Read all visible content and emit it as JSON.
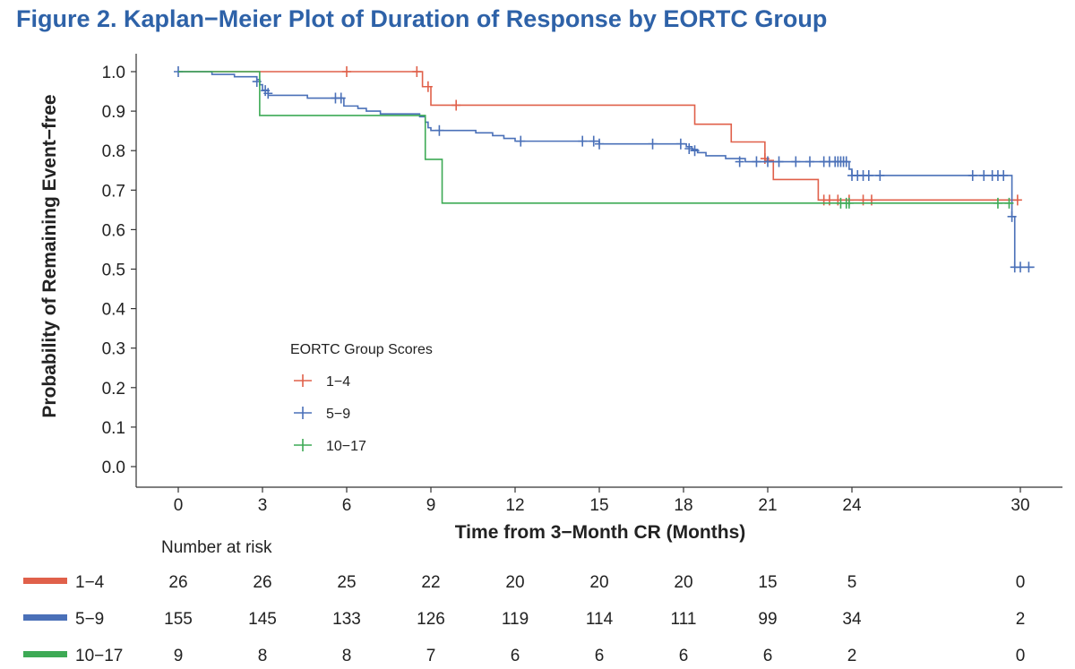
{
  "figure_title": "Figure 2. Kaplan−Meier Plot of Duration of Response by EORTC Group",
  "colors": {
    "title": "#2e62a8",
    "series_1_4": "#e0604a",
    "series_5_9": "#4a70b8",
    "series_10_17": "#3daa55",
    "axis": "#333333"
  },
  "chart_data": {
    "type": "line",
    "subtype": "kaplan-meier step",
    "ylabel": "Probability of Remaining Event−free",
    "xlabel": "Time from 3−Month CR (Months)",
    "xlim": [
      0,
      31
    ],
    "ylim": [
      0,
      1
    ],
    "x_ticks": [
      0,
      3,
      6,
      9,
      12,
      15,
      18,
      21,
      24,
      30
    ],
    "y_ticks": [
      "0.0",
      "0.1",
      "0.2",
      "0.3",
      "0.4",
      "0.5",
      "0.6",
      "0.7",
      "0.8",
      "0.9",
      "1.0"
    ],
    "legend": {
      "title": "EORTC Group Scores",
      "position": "lower-left inside plot"
    },
    "series": [
      {
        "name": "1−4",
        "color": "#e0604a",
        "steps": [
          [
            0,
            1.0
          ],
          [
            8.7,
            0.962
          ],
          [
            9.0,
            0.915
          ],
          [
            18.4,
            0.867
          ],
          [
            19.7,
            0.822
          ],
          [
            20.9,
            0.775
          ],
          [
            21.2,
            0.727
          ],
          [
            22.8,
            0.675
          ],
          [
            29.9,
            0.675
          ]
        ],
        "censored": [
          [
            6.0,
            1.0
          ],
          [
            8.5,
            1.0
          ],
          [
            8.9,
            0.962
          ],
          [
            9.9,
            0.915
          ],
          [
            20.9,
            0.78
          ],
          [
            23.0,
            0.675
          ],
          [
            23.2,
            0.675
          ],
          [
            23.5,
            0.675
          ],
          [
            23.9,
            0.675
          ],
          [
            24.4,
            0.675
          ],
          [
            24.7,
            0.675
          ],
          [
            29.9,
            0.675
          ]
        ]
      },
      {
        "name": "5−9",
        "color": "#4a70b8",
        "steps": [
          [
            0,
            1.0
          ],
          [
            1.2,
            0.993
          ],
          [
            2.0,
            0.987
          ],
          [
            2.8,
            0.98
          ],
          [
            2.9,
            0.967
          ],
          [
            3.0,
            0.953
          ],
          [
            3.2,
            0.94
          ],
          [
            4.6,
            0.933
          ],
          [
            5.9,
            0.913
          ],
          [
            6.4,
            0.907
          ],
          [
            6.7,
            0.9
          ],
          [
            7.2,
            0.893
          ],
          [
            8.6,
            0.886
          ],
          [
            8.8,
            0.872
          ],
          [
            8.9,
            0.858
          ],
          [
            9.0,
            0.851
          ],
          [
            10.6,
            0.845
          ],
          [
            11.2,
            0.838
          ],
          [
            11.6,
            0.831
          ],
          [
            12.0,
            0.824
          ],
          [
            12.2,
            0.824
          ],
          [
            15.0,
            0.817
          ],
          [
            18.1,
            0.81
          ],
          [
            18.3,
            0.803
          ],
          [
            18.5,
            0.795
          ],
          [
            18.8,
            0.787
          ],
          [
            19.5,
            0.78
          ],
          [
            20.2,
            0.772
          ],
          [
            23.9,
            0.753
          ],
          [
            24.0,
            0.737
          ],
          [
            29.6,
            0.737
          ],
          [
            29.7,
            0.633
          ],
          [
            29.8,
            0.505
          ],
          [
            30.5,
            0.505
          ]
        ],
        "censored": [
          [
            0.0,
            1.0
          ],
          [
            2.8,
            0.975
          ],
          [
            3.1,
            0.952
          ],
          [
            3.2,
            0.945
          ],
          [
            5.6,
            0.933
          ],
          [
            5.8,
            0.933
          ],
          [
            9.3,
            0.851
          ],
          [
            12.2,
            0.824
          ],
          [
            14.4,
            0.824
          ],
          [
            14.8,
            0.824
          ],
          [
            15.0,
            0.817
          ],
          [
            16.9,
            0.817
          ],
          [
            17.9,
            0.817
          ],
          [
            18.2,
            0.805
          ],
          [
            18.4,
            0.8
          ],
          [
            20.0,
            0.772
          ],
          [
            20.6,
            0.772
          ],
          [
            21.0,
            0.772
          ],
          [
            21.4,
            0.772
          ],
          [
            22.0,
            0.772
          ],
          [
            22.5,
            0.772
          ],
          [
            23.0,
            0.772
          ],
          [
            23.2,
            0.772
          ],
          [
            23.4,
            0.772
          ],
          [
            23.5,
            0.772
          ],
          [
            23.6,
            0.772
          ],
          [
            23.7,
            0.772
          ],
          [
            23.8,
            0.772
          ],
          [
            24.0,
            0.737
          ],
          [
            24.2,
            0.737
          ],
          [
            24.4,
            0.737
          ],
          [
            24.6,
            0.737
          ],
          [
            25.0,
            0.737
          ],
          [
            28.3,
            0.737
          ],
          [
            28.7,
            0.737
          ],
          [
            29.0,
            0.737
          ],
          [
            29.2,
            0.737
          ],
          [
            29.4,
            0.737
          ],
          [
            29.7,
            0.633
          ],
          [
            29.8,
            0.505
          ],
          [
            30.0,
            0.505
          ],
          [
            30.3,
            0.505
          ]
        ]
      },
      {
        "name": "10−17",
        "color": "#3daa55",
        "steps": [
          [
            0,
            1.0
          ],
          [
            2.9,
            0.889
          ],
          [
            8.8,
            0.778
          ],
          [
            9.4,
            0.667
          ],
          [
            29.7,
            0.667
          ]
        ],
        "censored": [
          [
            23.6,
            0.667
          ],
          [
            23.8,
            0.667
          ],
          [
            23.9,
            0.667
          ],
          [
            29.2,
            0.667
          ],
          [
            29.6,
            0.667
          ]
        ]
      }
    ],
    "risk_table": {
      "title": "Number at risk",
      "times": [
        0,
        3,
        6,
        9,
        12,
        15,
        18,
        21,
        24,
        30
      ],
      "rows": [
        {
          "label": "1−4",
          "color": "#e0604a",
          "counts": [
            "26",
            "26",
            "25",
            "22",
            "20",
            "20",
            "20",
            "15",
            "5",
            "0"
          ]
        },
        {
          "label": "5−9",
          "color": "#4a70b8",
          "counts": [
            "155",
            "145",
            "133",
            "126",
            "119",
            "114",
            "111",
            "99",
            "34",
            "2"
          ]
        },
        {
          "label": "10−17",
          "color": "#3daa55",
          "counts": [
            "9",
            "8",
            "8",
            "7",
            "6",
            "6",
            "6",
            "6",
            "2",
            "0"
          ]
        }
      ]
    }
  }
}
